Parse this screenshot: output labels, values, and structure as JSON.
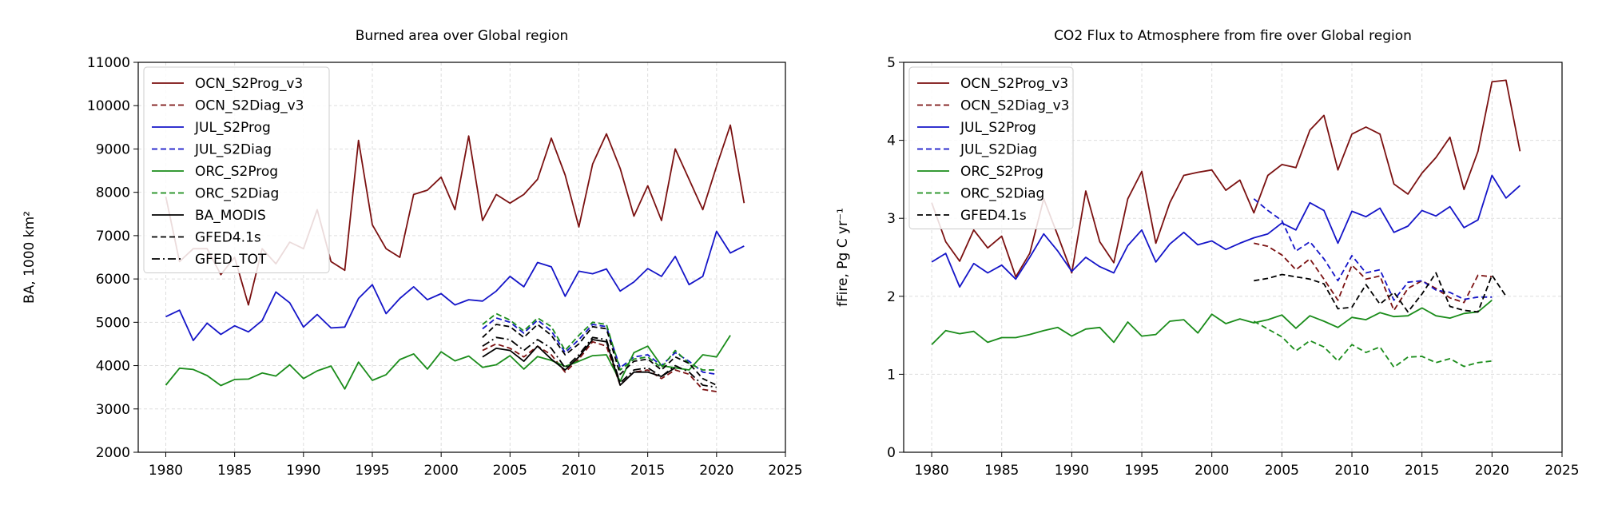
{
  "chart_data": [
    {
      "type": "line",
      "title": "Burned area over Global region",
      "xlabel": "",
      "ylabel": "BA, 1000 km²",
      "xlim": [
        1978,
        2025
      ],
      "ylim": [
        2000,
        11000
      ],
      "xticks": [
        1980,
        1985,
        1990,
        1995,
        2000,
        2005,
        2010,
        2015,
        2020,
        2025
      ],
      "yticks": [
        2000,
        3000,
        4000,
        5000,
        6000,
        7000,
        8000,
        9000,
        10000,
        11000
      ],
      "grid": true,
      "legend_position": "top-left",
      "series": [
        {
          "name": "OCN_S2Prog_v3",
          "color": "#7b1111",
          "dash": "solid",
          "x_start": 1980,
          "values": [
            7900,
            6400,
            6700,
            6700,
            6100,
            6500,
            5400,
            6700,
            6350,
            6850,
            6700,
            7600,
            6400,
            6200,
            9200,
            7250,
            6700,
            6500,
            7950,
            8050,
            8350,
            7600,
            9300,
            7350,
            7950,
            7750,
            7950,
            8300,
            9250,
            8400,
            7200,
            8650,
            9350,
            8550,
            7450,
            8150,
            7350,
            9000,
            8300,
            7600,
            8600,
            9550,
            7750
          ]
        },
        {
          "name": "OCN_S2Diag_v3",
          "color": "#7b1111",
          "dash": "dashed",
          "x_start": 2003,
          "values": [
            4350,
            4500,
            4400,
            4200,
            4450,
            4250,
            3850,
            4150,
            4550,
            4450,
            3550,
            3850,
            3900,
            3700,
            3900,
            3800,
            3450,
            3400
          ]
        },
        {
          "name": "JUL_S2Prog",
          "color": "#1515c8",
          "dash": "solid",
          "x_start": 1980,
          "values": [
            5130,
            5280,
            4580,
            4980,
            4720,
            4920,
            4780,
            5040,
            5700,
            5450,
            4890,
            5180,
            4870,
            4890,
            5550,
            5870,
            5200,
            5550,
            5820,
            5520,
            5660,
            5400,
            5520,
            5490,
            5720,
            6060,
            5820,
            6380,
            6280,
            5600,
            6180,
            6120,
            6230,
            5720,
            5930,
            6240,
            6060,
            6520,
            5870,
            6060,
            7100,
            6600,
            6760
          ]
        },
        {
          "name": "JUL_S2Diag",
          "color": "#1515c8",
          "dash": "dashed",
          "x_start": 2003,
          "values": [
            4850,
            5100,
            5000,
            4750,
            5050,
            4800,
            4300,
            4600,
            4950,
            4900,
            3950,
            4200,
            4250,
            4000,
            4300,
            4100,
            3850,
            3800
          ]
        },
        {
          "name": "ORC_S2Prog",
          "color": "#1a8c1a",
          "dash": "solid",
          "x_start": 1980,
          "values": [
            3550,
            3940,
            3910,
            3770,
            3540,
            3680,
            3690,
            3830,
            3760,
            4020,
            3700,
            3880,
            3990,
            3460,
            4080,
            3660,
            3790,
            4140,
            4270,
            3920,
            4320,
            4110,
            4220,
            3960,
            4020,
            4230,
            3920,
            4210,
            4120,
            3980,
            4100,
            4230,
            4250,
            3640,
            4300,
            4450,
            4000,
            3950,
            3900,
            4250,
            4200,
            4700
          ]
        },
        {
          "name": "ORC_S2Diag",
          "color": "#1a8c1a",
          "dash": "dashed",
          "x_start": 2003,
          "values": [
            4950,
            5200,
            5050,
            4800,
            5100,
            4900,
            4350,
            4700,
            5000,
            4950,
            3900,
            4150,
            4200,
            3950,
            4350,
            4050,
            3900,
            3900
          ]
        },
        {
          "name": "BA_MODIS",
          "color": "#000000",
          "dash": "solid",
          "x_start": 2003,
          "values": [
            4200,
            4400,
            4350,
            4100,
            4450,
            4150,
            3900,
            4200,
            4600,
            4550,
            3550,
            3850,
            3850,
            3750,
            3950
          ]
        },
        {
          "name": "GFED4.1s",
          "color": "#000000",
          "dash": "dashed",
          "x_start": 2003,
          "values": [
            4650,
            4950,
            4900,
            4650,
            4950,
            4700,
            4250,
            4500,
            4900,
            4850,
            3800,
            4100,
            4150,
            3900,
            4200,
            4050,
            3700,
            3550
          ]
        },
        {
          "name": "GFED_TOT",
          "color": "#000000",
          "dash": "dashdot",
          "x_start": 2003,
          "values": [
            4450,
            4650,
            4600,
            4350,
            4600,
            4400,
            3950,
            4250,
            4650,
            4600,
            3600,
            3900,
            3950,
            3750,
            4000,
            3850,
            3550,
            3500
          ]
        }
      ]
    },
    {
      "type": "line",
      "title": "CO2 Flux to Atmosphere from fire over Global region",
      "xlabel": "",
      "ylabel": "fFire, Pg C yr⁻¹",
      "xlim": [
        1978,
        2025
      ],
      "ylim": [
        0,
        5
      ],
      "xticks": [
        1980,
        1985,
        1990,
        1995,
        2000,
        2005,
        2010,
        2015,
        2020,
        2025
      ],
      "yticks": [
        0,
        1,
        2,
        3,
        4,
        5
      ],
      "grid": true,
      "legend_position": "top-left",
      "series": [
        {
          "name": "OCN_S2Prog_v3",
          "color": "#7b1111",
          "dash": "solid",
          "x_start": 1980,
          "values": [
            3.2,
            2.7,
            2.45,
            2.85,
            2.62,
            2.77,
            2.25,
            2.55,
            3.25,
            2.78,
            2.3,
            3.35,
            2.7,
            2.43,
            3.25,
            3.6,
            2.68,
            3.2,
            3.55,
            3.59,
            3.62,
            3.36,
            3.49,
            3.07,
            3.55,
            3.69,
            3.65,
            4.13,
            4.32,
            3.62,
            4.08,
            4.17,
            4.08,
            3.44,
            3.31,
            3.58,
            3.78,
            4.04,
            3.37,
            3.86,
            4.75,
            4.77,
            3.86
          ]
        },
        {
          "name": "OCN_S2Diag_v3",
          "color": "#7b1111",
          "dash": "dashed",
          "x_start": 2003,
          "values": [
            2.68,
            2.64,
            2.53,
            2.34,
            2.48,
            2.22,
            1.95,
            2.4,
            2.22,
            2.26,
            1.82,
            2.1,
            2.2,
            2.1,
            1.98,
            1.92,
            2.27,
            2.25
          ]
        },
        {
          "name": "JUL_S2Prog",
          "color": "#1515c8",
          "dash": "solid",
          "x_start": 1980,
          "values": [
            2.44,
            2.55,
            2.12,
            2.42,
            2.3,
            2.4,
            2.22,
            2.5,
            2.8,
            2.58,
            2.32,
            2.5,
            2.38,
            2.3,
            2.65,
            2.85,
            2.44,
            2.67,
            2.82,
            2.66,
            2.71,
            2.6,
            2.68,
            2.75,
            2.8,
            2.94,
            2.85,
            3.2,
            3.1,
            2.68,
            3.09,
            3.02,
            3.13,
            2.82,
            2.9,
            3.1,
            3.03,
            3.15,
            2.88,
            2.98,
            3.55,
            3.26,
            3.42
          ]
        },
        {
          "name": "JUL_S2Diag",
          "color": "#1515c8",
          "dash": "dashed",
          "x_start": 2003,
          "values": [
            3.25,
            3.1,
            2.97,
            2.58,
            2.7,
            2.48,
            2.2,
            2.52,
            2.3,
            2.34,
            1.95,
            2.18,
            2.2,
            2.08,
            2.05,
            1.96,
            1.99,
            1.99
          ]
        },
        {
          "name": "ORC_S2Prog",
          "color": "#1a8c1a",
          "dash": "solid",
          "x_start": 1980,
          "values": [
            1.38,
            1.56,
            1.52,
            1.55,
            1.41,
            1.47,
            1.47,
            1.51,
            1.56,
            1.6,
            1.49,
            1.58,
            1.6,
            1.41,
            1.67,
            1.49,
            1.51,
            1.68,
            1.7,
            1.53,
            1.77,
            1.65,
            1.71,
            1.66,
            1.7,
            1.76,
            1.59,
            1.75,
            1.68,
            1.6,
            1.73,
            1.7,
            1.79,
            1.74,
            1.75,
            1.85,
            1.75,
            1.72,
            1.78,
            1.8,
            1.95
          ]
        },
        {
          "name": "ORC_S2Diag",
          "color": "#1a8c1a",
          "dash": "dashed",
          "x_start": 2003,
          "values": [
            1.68,
            1.58,
            1.48,
            1.3,
            1.43,
            1.35,
            1.17,
            1.38,
            1.28,
            1.35,
            1.09,
            1.22,
            1.23,
            1.15,
            1.2,
            1.1,
            1.15,
            1.17
          ]
        },
        {
          "name": "GFED4.1s",
          "color": "#000000",
          "dash": "dashed",
          "x_start": 2003,
          "values": [
            2.2,
            2.23,
            2.28,
            2.25,
            2.22,
            2.16,
            1.84,
            1.86,
            2.15,
            1.9,
            2.05,
            1.8,
            2.03,
            2.3,
            1.87,
            1.82,
            1.8,
            2.27,
            2.0
          ]
        }
      ]
    }
  ]
}
